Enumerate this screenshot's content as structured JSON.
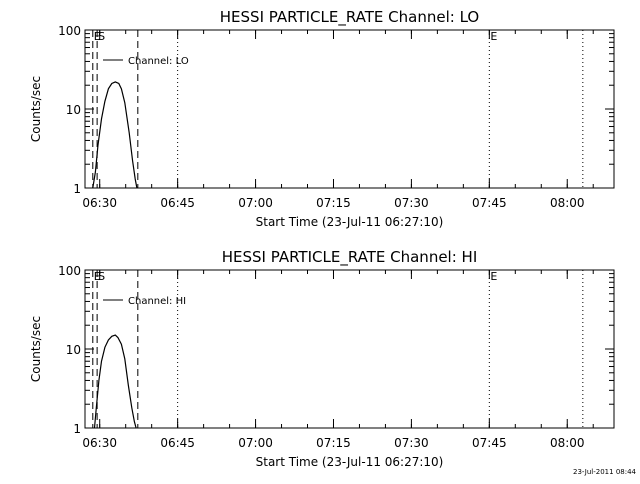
{
  "footer_timestamp": "23-Jul-2011 08:44",
  "chart_data": [
    {
      "type": "line",
      "title": "HESSI PARTICLE_RATE Channel: LO",
      "xlabel": "Start Time (23-Jul-11 06:27:10)",
      "ylabel": "Counts/sec",
      "yscale": "log",
      "ylim": [
        1,
        100
      ],
      "y_ticks": [
        {
          "value": 1,
          "label": "1"
        },
        {
          "value": 10,
          "label": "10"
        },
        {
          "value": 100,
          "label": "100"
        }
      ],
      "xlim": [
        "06:27:10",
        "08:09:00"
      ],
      "x_ticks": [
        "06:30",
        "06:45",
        "07:00",
        "07:15",
        "07:30",
        "07:45",
        "08:00"
      ],
      "legend": {
        "label": "Channel: LO",
        "position": "top-left"
      },
      "markers": [
        {
          "time": "06:28:40",
          "label": "E",
          "style": "dashed"
        },
        {
          "time": "06:29:30",
          "label": "S",
          "style": "dashed"
        },
        {
          "time": "06:37:20",
          "label": "",
          "style": "dashed"
        },
        {
          "time": "06:45:00",
          "label": "",
          "style": "dotted"
        },
        {
          "time": "07:45:00",
          "label": "E",
          "style": "dotted"
        },
        {
          "time": "08:03:00",
          "label": "",
          "style": "dotted"
        }
      ],
      "series": [
        {
          "x": [
            "06:28:40",
            "06:29:10",
            "06:29:40",
            "06:30:20",
            "06:31:00",
            "06:31:40",
            "06:32:20",
            "06:33:00",
            "06:33:40",
            "06:34:10",
            "06:34:50",
            "06:35:40",
            "06:36:20",
            "06:36:50",
            "06:37:10"
          ],
          "y": [
            1.0,
            1.6,
            3.5,
            7.5,
            12.5,
            18.0,
            21.0,
            22.0,
            21.0,
            18.0,
            12.0,
            5.0,
            2.2,
            1.3,
            1.0
          ]
        }
      ]
    },
    {
      "type": "line",
      "title": "HESSI PARTICLE_RATE Channel: HI",
      "xlabel": "Start Time (23-Jul-11 06:27:10)",
      "ylabel": "Counts/sec",
      "yscale": "log",
      "ylim": [
        1,
        100
      ],
      "y_ticks": [
        {
          "value": 1,
          "label": "1"
        },
        {
          "value": 10,
          "label": "10"
        },
        {
          "value": 100,
          "label": "100"
        }
      ],
      "xlim": [
        "06:27:10",
        "08:09:00"
      ],
      "x_ticks": [
        "06:30",
        "06:45",
        "07:00",
        "07:15",
        "07:30",
        "07:45",
        "08:00"
      ],
      "legend": {
        "label": "Channel: HI",
        "position": "top-left"
      },
      "markers": [
        {
          "time": "06:28:40",
          "label": "E",
          "style": "dashed"
        },
        {
          "time": "06:29:30",
          "label": "S",
          "style": "dashed"
        },
        {
          "time": "06:37:20",
          "label": "",
          "style": "dashed"
        },
        {
          "time": "06:45:00",
          "label": "",
          "style": "dotted"
        },
        {
          "time": "07:45:00",
          "label": "E",
          "style": "dotted"
        },
        {
          "time": "08:03:00",
          "label": "",
          "style": "dotted"
        }
      ],
      "series": [
        {
          "x": [
            "06:29:00",
            "06:29:20",
            "06:29:50",
            "06:30:20",
            "06:31:00",
            "06:31:40",
            "06:32:20",
            "06:33:00",
            "06:33:30",
            "06:34:10",
            "06:34:50",
            "06:35:30",
            "06:36:10",
            "06:36:40",
            "06:37:00"
          ],
          "y": [
            1.0,
            1.8,
            4.0,
            7.0,
            10.5,
            13.0,
            14.5,
            15.0,
            14.0,
            11.5,
            7.5,
            3.5,
            1.8,
            1.2,
            1.0
          ]
        }
      ]
    }
  ]
}
